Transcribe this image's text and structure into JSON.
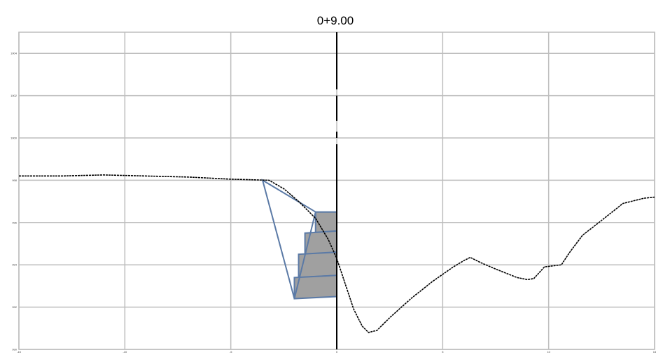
{
  "chart_data": {
    "type": "line",
    "title": "0+9.00",
    "xlabel": "",
    "ylabel": "",
    "xlim": [
      -15,
      15
    ],
    "ylim": [
      990,
      1005
    ],
    "x_ticks": [
      -15,
      -10,
      -5,
      0,
      5,
      10,
      15
    ],
    "y_ticks": [
      990,
      992,
      994,
      996,
      998,
      1000,
      1002,
      1004
    ],
    "x_tick_labels": [
      "-15",
      "-10",
      "-5",
      "0",
      "5",
      "10",
      "15"
    ],
    "y_tick_labels": [
      "990",
      "992",
      "994",
      "996",
      "998",
      "1000",
      "1002",
      "1004"
    ],
    "grid": true,
    "centerline_x": 0,
    "series": [
      {
        "kind": "ground-profile",
        "style": "dashed",
        "color": "#000000",
        "points": [
          [
            -15,
            998.2
          ],
          [
            -13,
            998.2
          ],
          [
            -11,
            998.25
          ],
          [
            -9,
            998.2
          ],
          [
            -7,
            998.15
          ],
          [
            -5,
            998.05
          ],
          [
            -3.2,
            998.0
          ],
          [
            -2.5,
            997.6
          ],
          [
            -1.8,
            997.0
          ],
          [
            -1.0,
            996.2
          ],
          [
            -0.4,
            995.2
          ],
          [
            0,
            994.3
          ],
          [
            0.4,
            993.1
          ],
          [
            0.8,
            991.9
          ],
          [
            1.2,
            991.1
          ],
          [
            1.5,
            990.8
          ],
          [
            1.9,
            990.9
          ],
          [
            2.5,
            991.5
          ],
          [
            3.5,
            992.4
          ],
          [
            4.5,
            993.2
          ],
          [
            5.5,
            993.9
          ],
          [
            6.0,
            994.2
          ],
          [
            6.3,
            994.35
          ],
          [
            6.8,
            994.1
          ],
          [
            7.5,
            993.8
          ],
          [
            8.5,
            993.4
          ],
          [
            9.0,
            993.3
          ],
          [
            9.3,
            993.35
          ],
          [
            9.8,
            993.9
          ],
          [
            10.6,
            994.0
          ],
          [
            11.0,
            994.6
          ],
          [
            11.6,
            995.4
          ],
          [
            12.5,
            996.1
          ],
          [
            13.5,
            996.9
          ],
          [
            14.5,
            997.15
          ],
          [
            15,
            997.2
          ]
        ]
      }
    ],
    "overlays": [
      {
        "kind": "stepped-blocks",
        "fill": "#a0a0a0",
        "stroke": "#5b7aa6",
        "blocks": [
          [
            [
              -1.0,
              996.5
            ],
            [
              0,
              996.5
            ],
            [
              0,
              995.5
            ],
            [
              -1.0,
              995.5
            ]
          ],
          [
            [
              -1.5,
              995.5
            ],
            [
              0,
              995.6
            ],
            [
              0,
              994.5
            ],
            [
              -1.5,
              994.5
            ]
          ],
          [
            [
              -1.8,
              994.5
            ],
            [
              0,
              994.6
            ],
            [
              0,
              993.5
            ],
            [
              -1.8,
              993.4
            ]
          ],
          [
            [
              -2.0,
              993.4
            ],
            [
              0,
              993.5
            ],
            [
              0,
              992.5
            ],
            [
              -2.0,
              992.4
            ]
          ]
        ]
      },
      {
        "kind": "triangle-outline",
        "stroke": "#5b7aa6",
        "points": [
          [
            -3.5,
            998.0
          ],
          [
            -1.0,
            996.5
          ],
          [
            -2.0,
            992.4
          ]
        ]
      }
    ]
  }
}
